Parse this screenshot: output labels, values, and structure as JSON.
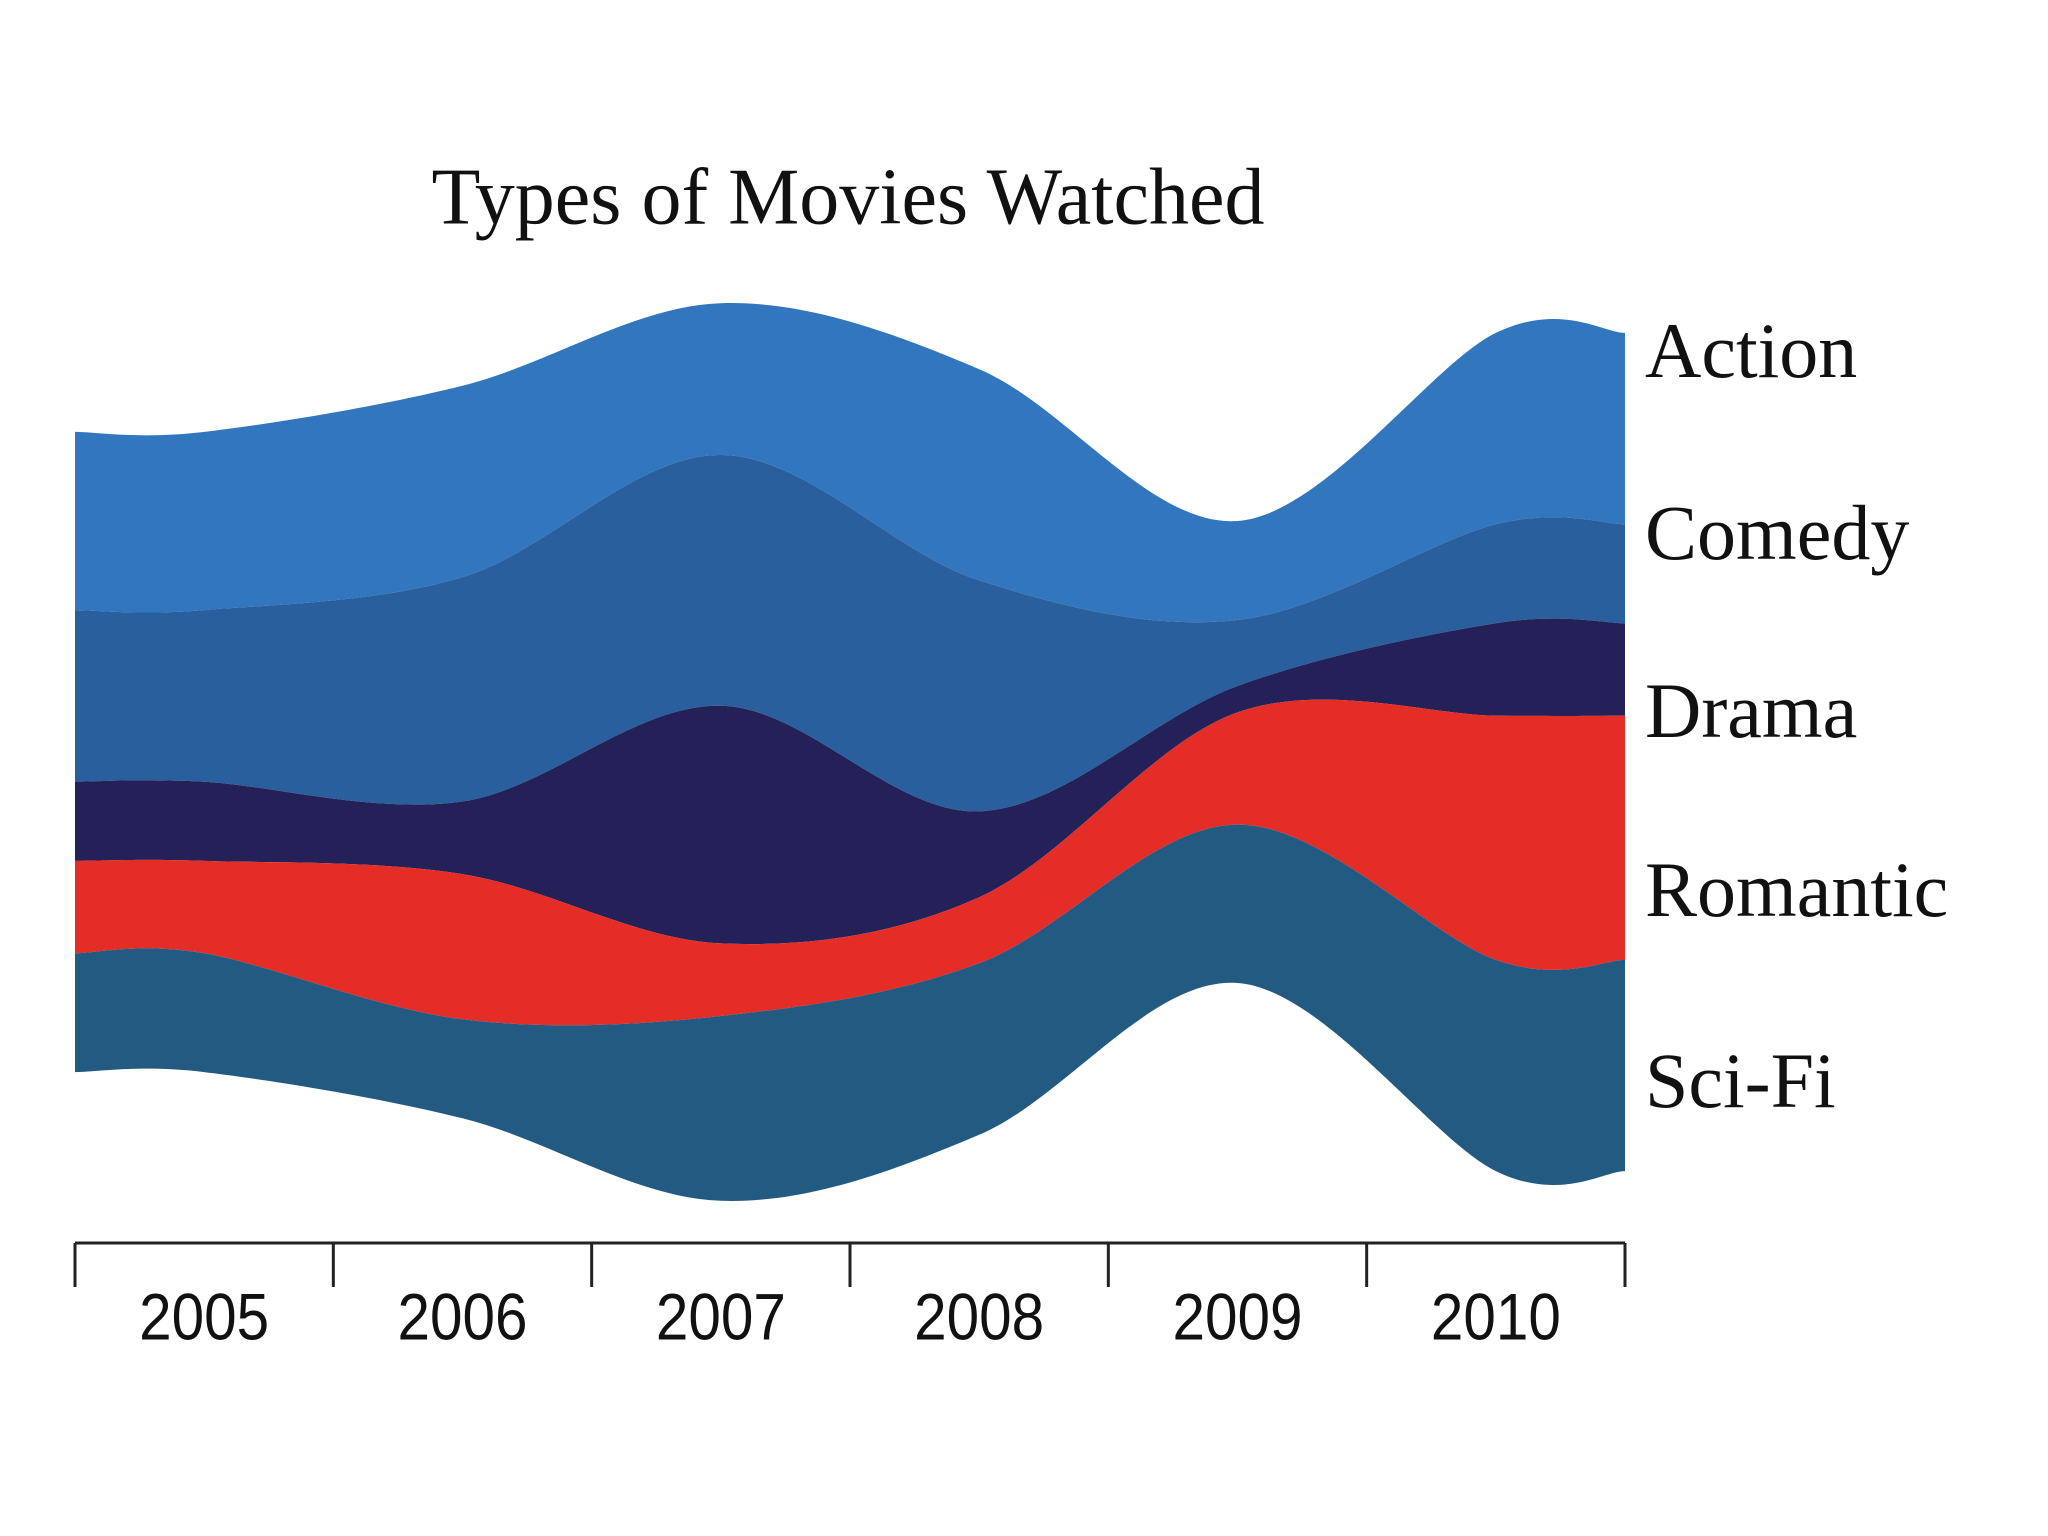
{
  "chart_data": {
    "type": "streamgraph",
    "title": "Types of Movies Watched",
    "categories": [
      "2005",
      "2006",
      "2007",
      "2008",
      "2009",
      "2010"
    ],
    "series": [
      {
        "name": "Action",
        "color": "#3276bd",
        "values": [
          27,
          29,
          23,
          32,
          15,
          29
        ]
      },
      {
        "name": "Comedy",
        "color": "#2a5f9e",
        "values": [
          26,
          34,
          38,
          35,
          10,
          15
        ]
      },
      {
        "name": "Drama",
        "color": "#232158",
        "values": [
          12,
          11,
          36,
          13,
          4,
          14
        ]
      },
      {
        "name": "Romantic",
        "color": "#e52d27",
        "values": [
          14,
          22,
          11,
          10,
          17,
          37
        ]
      },
      {
        "name": "Sci-Fi",
        "color": "#235a82",
        "values": [
          18,
          15,
          28,
          26,
          24,
          32
        ]
      }
    ]
  }
}
